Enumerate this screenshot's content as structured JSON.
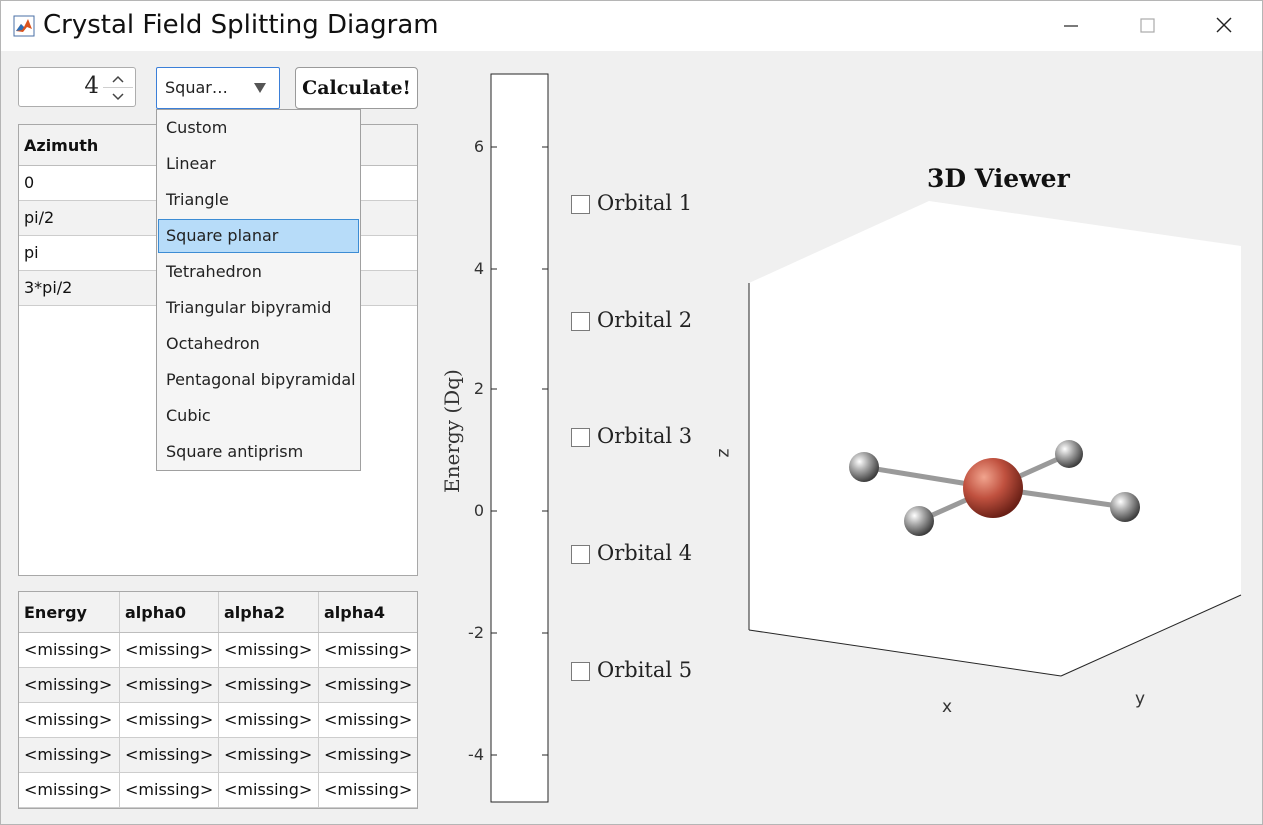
{
  "window": {
    "title": "Crystal Field Splitting Diagram",
    "icon": "matlab-icon"
  },
  "controls": {
    "ligand_count": "4",
    "geometry_selected": "Squar…",
    "calculate_label": "Calculate!"
  },
  "geometry_options": [
    {
      "label": "Custom"
    },
    {
      "label": "Linear"
    },
    {
      "label": "Triangle"
    },
    {
      "label": "Square planar",
      "selected": true
    },
    {
      "label": "Tetrahedron"
    },
    {
      "label": "Triangular bipyramid"
    },
    {
      "label": "Octahedron"
    },
    {
      "label": "Pentagonal bipyramidal"
    },
    {
      "label": "Cubic"
    },
    {
      "label": "Square antiprism"
    }
  ],
  "ligand_table": {
    "header": "Azimuth",
    "rows": [
      "0",
      "pi/2",
      "pi",
      "3*pi/2"
    ]
  },
  "energy_table": {
    "headers": [
      "Energy",
      "alpha0",
      "alpha2",
      "alpha4"
    ],
    "rows": [
      [
        "<missing>",
        "<missing>",
        "<missing>",
        "<missing>"
      ],
      [
        "<missing>",
        "<missing>",
        "<missing>",
        "<missing>"
      ],
      [
        "<missing>",
        "<missing>",
        "<missing>",
        "<missing>"
      ],
      [
        "<missing>",
        "<missing>",
        "<missing>",
        "<missing>"
      ],
      [
        "<missing>",
        "<missing>",
        "<missing>",
        "<missing>"
      ]
    ]
  },
  "energy_axis": {
    "label": "Energy (Dq)",
    "ticks": [
      "6",
      "4",
      "2",
      "0",
      "-2",
      "-4"
    ]
  },
  "orbitals": [
    {
      "label": "Orbital 1",
      "checked": false
    },
    {
      "label": "Orbital 2",
      "checked": false
    },
    {
      "label": "Orbital 3",
      "checked": false
    },
    {
      "label": "Orbital 4",
      "checked": false
    },
    {
      "label": "Orbital 5",
      "checked": false
    }
  ],
  "viewer": {
    "title": "3D Viewer",
    "x_label": "x",
    "y_label": "y",
    "z_label": "z",
    "metal_color": "#c0513f",
    "ligand_color": "#9a9a9a"
  }
}
